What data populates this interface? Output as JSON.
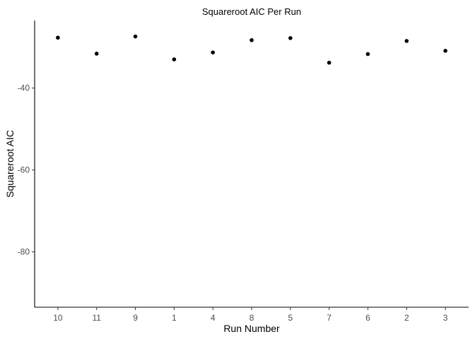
{
  "chart_data": {
    "type": "scatter",
    "title": "Squareroot AIC Per Run",
    "xlabel": "Run Number",
    "ylabel": "Squareroot AIC",
    "categories": [
      "10",
      "11",
      "9",
      "1",
      "4",
      "8",
      "5",
      "7",
      "6",
      "2",
      "3"
    ],
    "values": [
      -27.7,
      -31.6,
      -27.4,
      -33.0,
      -31.3,
      -28.3,
      -27.8,
      -33.8,
      -31.7,
      -28.5,
      -30.9
    ],
    "y_ticks": [
      -40,
      -60,
      -80
    ],
    "ylim": [
      -93.5,
      -23.5
    ],
    "grid": false,
    "legend": "none",
    "point_color": "#000000"
  }
}
